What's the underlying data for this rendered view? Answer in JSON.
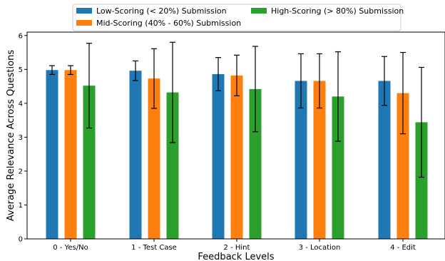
{
  "chart_data": {
    "type": "bar",
    "xlabel": "Feedback Levels",
    "ylabel": "Average Relevance Across Questions",
    "ylim": [
      0,
      6.1
    ],
    "yticks": [
      0,
      1,
      2,
      3,
      4,
      5,
      6
    ],
    "categories": [
      "0 - Yes/No",
      "1 - Test Case",
      "2 - Hint",
      "3 - Location",
      "4 - Edit"
    ],
    "series": [
      {
        "name": "Low-Scoring (< 20%) Submission",
        "color": "#1f77b4",
        "values": [
          4.98,
          4.96,
          4.86,
          4.66,
          4.66
        ],
        "error": [
          0.13,
          0.29,
          0.49,
          0.8,
          0.72
        ]
      },
      {
        "name": "Mid-Scoring (40% - 60%) Submission",
        "color": "#ff7f0e",
        "values": [
          4.98,
          4.73,
          4.82,
          4.66,
          4.3
        ],
        "error": [
          0.13,
          0.88,
          0.6,
          0.8,
          1.2
        ]
      },
      {
        "name": "High-Scoring (> 80%) Submission",
        "color": "#2ca02c",
        "values": [
          4.52,
          4.32,
          4.42,
          4.2,
          3.44
        ],
        "error": [
          1.25,
          1.48,
          1.26,
          1.32,
          1.62
        ]
      }
    ],
    "grid": false,
    "legend_position": "top"
  }
}
